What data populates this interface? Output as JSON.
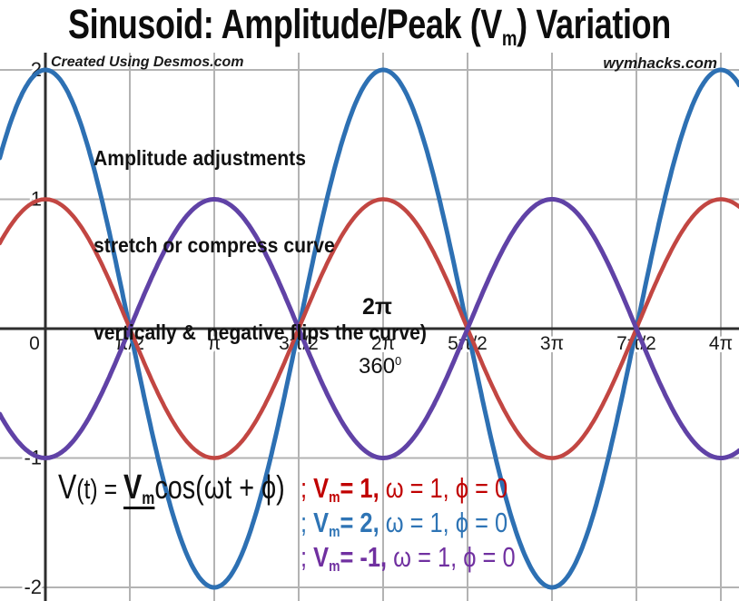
{
  "title": {
    "pre": "Sinusoid: Amplitude/Peak (V",
    "sub": "m",
    "post": ") Variation"
  },
  "watermarks": {
    "left": "Created Using Desmos.com",
    "right": "wymhacks.com"
  },
  "annotation": {
    "line1": "Amplitude adjustments",
    "line2": "stretch or compress curve",
    "line3": "vertically &  negative flips the curve)"
  },
  "period_label": {
    "radians": "2π",
    "degrees_base": "360",
    "degrees_sup": "0"
  },
  "formula": {
    "def": {
      "v": "V",
      "arg": "(t) = ",
      "vm_v": "V",
      "vm_sub": "m",
      "rest": "cos(ωt + ϕ)"
    },
    "cases": [
      {
        "sep": "; ",
        "v": "V",
        "sub": "m",
        "eq": "= 1,",
        "tail": " ω = 1, ϕ = 0",
        "color": "#c00000"
      },
      {
        "sep": "; ",
        "v": "V",
        "sub": "m",
        "eq": "= 2,",
        "tail": " ω = 1, ϕ = 0",
        "color": "#2e74b5"
      },
      {
        "sep": "; ",
        "v": "V",
        "sub": "m",
        "eq": "= -1,",
        "tail": " ω = 1, ϕ = 0",
        "color": "#7030a0"
      }
    ]
  },
  "colors": {
    "grid": "#b3b3b3",
    "axis": "#2e2e2e",
    "tick_text": "#1a1a1a",
    "curve_blue": "#2d70b3",
    "curve_red": "#c24642",
    "curve_purple": "#6042a6"
  },
  "chart_data": {
    "type": "line",
    "title": "Sinusoid: Amplitude/Peak (Vm) Variation",
    "function": "V(t) = Vm cos(ωt + ϕ)",
    "grid": true,
    "x_axis": {
      "unit": "radians",
      "tick_step": "π/2",
      "min": -0.85,
      "max": 12.91,
      "ticks": [
        {
          "label": "0",
          "k": 0
        },
        {
          "label": "π/2",
          "k": 1
        },
        {
          "label": "π",
          "k": 2
        },
        {
          "label": "3π/2",
          "k": 3
        },
        {
          "label": "2π",
          "k": 4
        },
        {
          "label": "5π/2",
          "k": 5
        },
        {
          "label": "3π",
          "k": 6
        },
        {
          "label": "7π/2",
          "k": 7
        },
        {
          "label": "4π",
          "k": 8
        }
      ]
    },
    "y_axis": {
      "min": -2.14,
      "max": 2.14,
      "ticks": [
        {
          "label": "2",
          "v": 2
        },
        {
          "label": "1",
          "v": 1
        },
        {
          "label": "-1",
          "v": -1
        },
        {
          "label": "-2",
          "v": -2
        }
      ]
    },
    "series": [
      {
        "name": "Vm = 2",
        "expression": "2·cos(t)",
        "amplitude": 2,
        "omega": 1,
        "phi": 0,
        "color": "#2d70b3",
        "stroke_width": 5
      },
      {
        "name": "Vm = 1",
        "expression": "cos(t)",
        "amplitude": 1,
        "omega": 1,
        "phi": 0,
        "color": "#c24642",
        "stroke_width": 4.5
      },
      {
        "name": "Vm = -1",
        "expression": "−cos(t)",
        "amplitude": -1,
        "omega": 1,
        "phi": 0,
        "color": "#6042a6",
        "stroke_width": 5
      }
    ]
  }
}
